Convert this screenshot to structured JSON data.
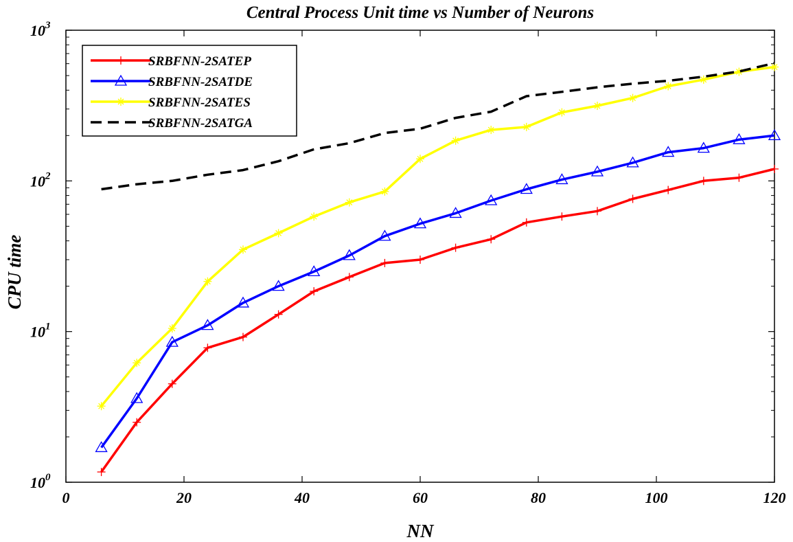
{
  "chart_data": {
    "type": "line",
    "title": "Central Process Unit time vs Number of Neurons",
    "xlabel": "NN",
    "ylabel": "CPU time",
    "xlim": [
      0,
      120
    ],
    "ylim": [
      1,
      1000
    ],
    "yscale": "log",
    "x_ticks": [
      0,
      20,
      40,
      60,
      80,
      100,
      120
    ],
    "y_ticks": [
      {
        "value": 1,
        "base": "10",
        "exp": "0"
      },
      {
        "value": 10,
        "base": "10",
        "exp": "1"
      },
      {
        "value": 100,
        "base": "10",
        "exp": "2"
      },
      {
        "value": 1000,
        "base": "10",
        "exp": "3"
      }
    ],
    "x": [
      6,
      12,
      18,
      24,
      30,
      36,
      42,
      48,
      54,
      60,
      66,
      72,
      78,
      84,
      90,
      96,
      102,
      108,
      114,
      120
    ],
    "legend_position": "top-left",
    "series": [
      {
        "name": "SRBFNN-2SATEP",
        "color": "#ff0000",
        "dash": "solid",
        "marker": "plus",
        "values": [
          1.17,
          2.5,
          4.5,
          7.8,
          9.2,
          13,
          18.5,
          23,
          28.5,
          30,
          36,
          41,
          53,
          58,
          63,
          76,
          87,
          100,
          105,
          120
        ]
      },
      {
        "name": "SRBFNN-2SATDE",
        "color": "#0000ff",
        "dash": "solid",
        "marker": "triangle",
        "values": [
          1.7,
          3.6,
          8.5,
          11,
          15.5,
          20,
          25,
          32,
          43,
          52,
          61,
          74,
          88,
          102,
          115,
          132,
          155,
          165,
          188,
          200
        ]
      },
      {
        "name": "SRBFNN-2SATES",
        "color": "#ffff00",
        "dash": "solid",
        "marker": "star",
        "values": [
          3.2,
          6.2,
          10.5,
          21.5,
          35,
          45,
          58,
          72,
          85,
          140,
          185,
          218,
          228,
          285,
          315,
          355,
          425,
          470,
          530,
          570
        ]
      },
      {
        "name": "SRBFNN-2SATGA",
        "color": "#000000",
        "dash": "dashed",
        "marker": "none",
        "values": [
          88,
          95,
          100,
          110,
          118,
          135,
          162,
          178,
          208,
          222,
          262,
          288,
          365,
          390,
          418,
          442,
          462,
          492,
          532,
          605
        ]
      }
    ]
  }
}
